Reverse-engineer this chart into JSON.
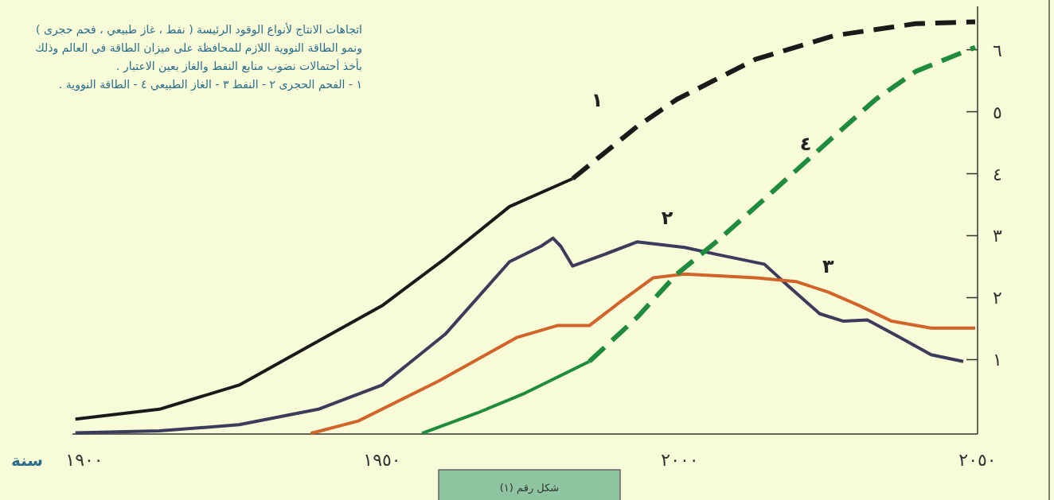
{
  "chart_data": {
    "type": "line",
    "title": "اتجاهات الانتاج لأنواع الوقود الرئيسة ( نفط ، غاز طبيعي ، فحم حجرى ) ونمو الطاقة النووية اللازم للمحافظة على ميزان الطاقة في العالم وذلك بأخذ أحتمالات نضوب منابع النفط والغاز بعين الاعتبار .",
    "xlabel": "سنة",
    "annotations": [
      "١ - الفحم الحجرى   ٢ - النفط   ٣ - الغاز الطبيعي   ٤ - الطاقة النووية .",
      "شكل رقم (١)"
    ],
    "xlim": [
      1898,
      2050
    ],
    "ylim": [
      -0.2,
      6.7
    ],
    "xticks": [
      {
        "value": 1900,
        "label": "١٩٠٠"
      },
      {
        "value": 1950,
        "label": "١٩٥٠"
      },
      {
        "value": 2000,
        "label": "٢٠٠٠"
      },
      {
        "value": 2050,
        "label": "٢٠٥٠"
      }
    ],
    "yticks": [
      {
        "value": 1,
        "label": "١"
      },
      {
        "value": 2,
        "label": "٢"
      },
      {
        "value": 3,
        "label": "٣"
      },
      {
        "value": 4,
        "label": "٤"
      },
      {
        "value": 5,
        "label": "٥"
      },
      {
        "value": 6,
        "label": "٦"
      }
    ],
    "marker": "none",
    "series": [
      {
        "color": "#1a1a1a",
        "line_style": "solid",
        "x": [
          1898.5,
          1912.6,
          1926,
          1939.3,
          1950,
          1960.7,
          1971.4,
          1982
        ],
        "values": [
          0.04,
          0.2,
          0.59,
          1.3,
          1.87,
          2.64,
          3.47,
          3.92
        ]
      },
      {
        "name": "١",
        "color": "#1a1a1a",
        "line_style": "dashed",
        "x": [
          1982,
          1992.8,
          1999.5,
          2012.8,
          2026,
          2039.6,
          2049.6
        ],
        "values": [
          3.92,
          4.76,
          5.2,
          5.85,
          6.23,
          6.42,
          6.45
        ]
      },
      {
        "name": "٢",
        "color": "#3b3b5c",
        "line_style": "solid",
        "x": [
          1898.5,
          1912.6,
          1926,
          1939.3,
          1950,
          1960.7,
          1971.4,
          1976.7,
          1978.7,
          1980,
          1982,
          1987.4,
          1992.8,
          2000.8,
          2006.1,
          2014.2,
          2018.2,
          2023.5,
          2027.5,
          2031.5,
          2036.9,
          2042.2,
          2047.6
        ],
        "values": [
          -0.18,
          -0.15,
          -0.05,
          0.2,
          0.59,
          1.42,
          2.58,
          2.83,
          2.96,
          2.83,
          2.51,
          2.7,
          2.9,
          2.81,
          2.7,
          2.54,
          2.19,
          1.74,
          1.62,
          1.64,
          1.36,
          1.08,
          0.97
        ]
      },
      {
        "name": "٣",
        "color": "#d2642a",
        "line_style": "solid",
        "x": [
          1938,
          1946,
          1959.4,
          1972.7,
          1979.4,
          1984.8,
          1990.1,
          1995.5,
          2000.8,
          2012.8,
          2019.5,
          2024.9,
          2030.2,
          2035.6,
          2042.2,
          2049.6
        ],
        "values": [
          -0.19,
          0.01,
          0.65,
          1.36,
          1.55,
          1.55,
          1.94,
          2.32,
          2.38,
          2.32,
          2.26,
          2.09,
          1.87,
          1.62,
          1.51,
          1.51
        ]
      },
      {
        "color": "#1e8c3c",
        "line_style": "solid",
        "x": [
          1956.7,
          1966,
          1974,
          1984.8
        ],
        "values": [
          -0.19,
          0.14,
          0.46,
          0.97
        ]
      },
      {
        "name": "٤",
        "color": "#1e8c3c",
        "line_style": "dashed",
        "x": [
          1984.8,
          1992.8,
          1999.5,
          2006.1,
          2012.8,
          2019.5,
          2026.2,
          2032.9,
          2039.6,
          2049.6
        ],
        "values": [
          0.97,
          1.68,
          2.38,
          2.9,
          3.47,
          4.05,
          4.63,
          5.2,
          5.65,
          6.04
        ]
      }
    ]
  }
}
